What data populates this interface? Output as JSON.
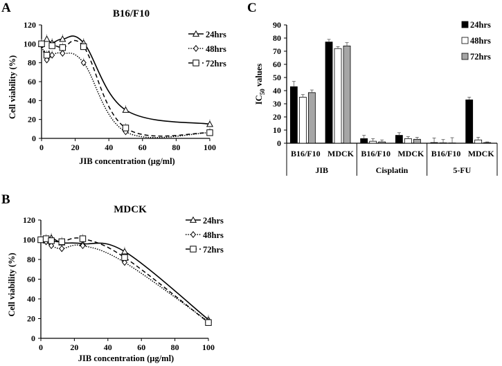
{
  "panels": {
    "A": "A",
    "B": "B",
    "C": "C"
  },
  "chart_data": [
    {
      "id": "A",
      "type": "line",
      "title": "B16/F10",
      "xlabel": "JIB concentration (µg/ml)",
      "ylabel": "Cell viability (%)",
      "xlim": [
        0,
        100
      ],
      "ylim": [
        0,
        120
      ],
      "xticks": [
        0,
        20,
        40,
        60,
        80,
        100
      ],
      "yticks": [
        0,
        20,
        40,
        60,
        80,
        100,
        120
      ],
      "grid": false,
      "legend": "top-right",
      "x": [
        0,
        3.125,
        6.25,
        12.5,
        25,
        50,
        100
      ],
      "series": [
        {
          "name": "24hrs",
          "marker": "triangle",
          "line": "solid",
          "values": [
            100,
            105,
            101,
            105,
            101,
            30,
            15
          ]
        },
        {
          "name": "48hrs",
          "marker": "diamond",
          "line": "dotted",
          "values": [
            99,
            83,
            88,
            90,
            80,
            7,
            6
          ]
        },
        {
          "name": "72hrs",
          "marker": "square",
          "line": "dashed",
          "values": [
            100,
            88,
            98,
            96,
            97,
            11,
            6
          ]
        }
      ]
    },
    {
      "id": "B",
      "type": "line",
      "title": "MDCK",
      "xlabel": "JIB concentration (µg/ml)",
      "ylabel": "Cell viability (%)",
      "xlim": [
        0,
        100
      ],
      "ylim": [
        0,
        120
      ],
      "xticks": [
        0,
        20,
        40,
        60,
        80,
        100
      ],
      "yticks": [
        0,
        20,
        40,
        60,
        80,
        100,
        120
      ],
      "grid": false,
      "legend": "top-right",
      "x": [
        0,
        3.125,
        6.25,
        12.5,
        25,
        50,
        100
      ],
      "series": [
        {
          "name": "24hrs",
          "marker": "triangle",
          "line": "solid",
          "values": [
            100,
            99,
            102,
            97,
            96,
            88,
            19
          ]
        },
        {
          "name": "48hrs",
          "marker": "diamond",
          "line": "dotted",
          "values": [
            100,
            98,
            94,
            91,
            94,
            77,
            17
          ]
        },
        {
          "name": "72hrs",
          "marker": "square",
          "line": "dashed",
          "values": [
            100,
            101,
            99,
            98,
            101,
            82,
            16
          ]
        }
      ]
    },
    {
      "id": "C",
      "type": "bar",
      "title": "",
      "ylabel": "IC50 values",
      "ylim": [
        0,
        90
      ],
      "yticks": [
        0,
        10,
        20,
        30,
        40,
        50,
        60,
        70,
        80,
        90
      ],
      "grid": false,
      "legend": "top-right",
      "groups": [
        "JIB",
        "Cisplatin",
        "5-FU"
      ],
      "categories": [
        "B16/F10",
        "MDCK",
        "B16/F10",
        "MDCK",
        "B16/F10",
        "MDCK"
      ],
      "series": [
        {
          "name": "24hrs",
          "color": "#000000",
          "values": [
            43,
            77,
            3.5,
            6,
            0.5,
            33
          ],
          "errors": [
            4,
            2,
            2.5,
            2,
            3.5,
            2
          ]
        },
        {
          "name": "48hrs",
          "color": "#ffffff",
          "values": [
            35,
            72,
            1.5,
            3.5,
            0.3,
            2.5
          ],
          "errors": [
            2,
            1.5,
            2,
            1.5,
            2.5,
            2
          ]
        },
        {
          "name": "72hrs",
          "color": "#a6a6a6",
          "values": [
            38.5,
            74,
            1,
            3,
            0.2,
            0.5
          ],
          "errors": [
            2,
            2.5,
            1.5,
            1.5,
            4,
            0.5
          ]
        }
      ]
    }
  ]
}
